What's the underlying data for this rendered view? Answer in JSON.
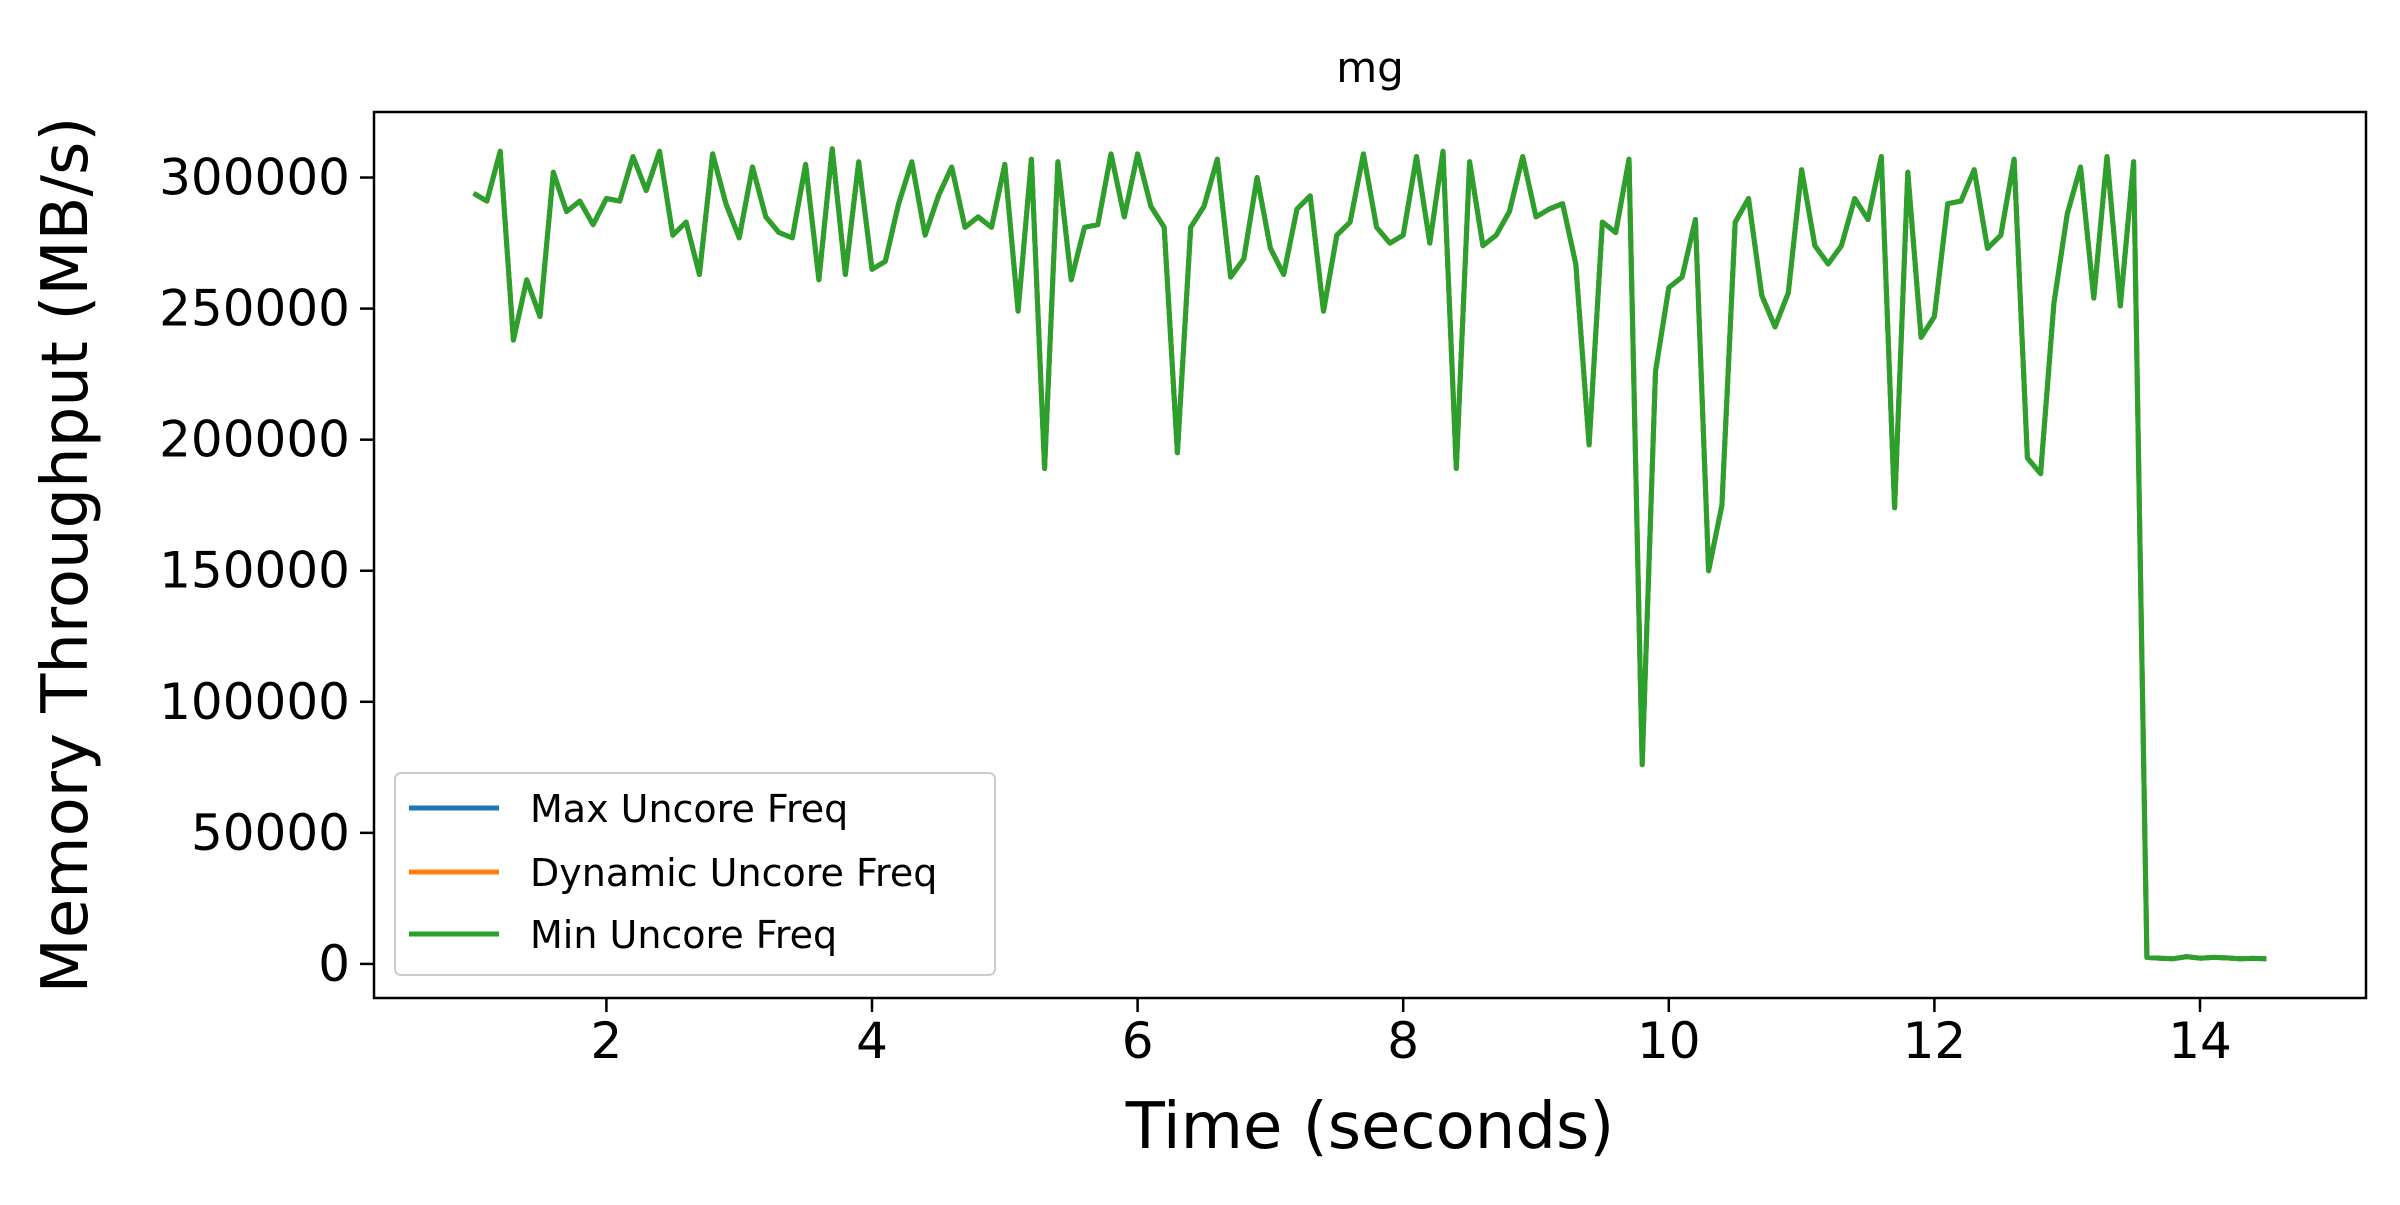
{
  "chart_data": {
    "type": "line",
    "title": "mg",
    "xlabel": "Time (seconds)",
    "ylabel": "Memory Throughput (MB/s)",
    "xlim": [
      0.25,
      15.25
    ],
    "ylim": [
      -13000,
      325000
    ],
    "xticks": [
      2,
      4,
      6,
      8,
      10,
      12,
      14
    ],
    "yticks": [
      0,
      50000,
      100000,
      150000,
      200000,
      250000,
      300000
    ],
    "grid": false,
    "legend_position": "lower-left",
    "x": [
      1.0,
      1.1,
      1.2,
      1.3,
      1.4,
      1.5,
      1.6,
      1.7,
      1.8,
      1.9,
      2.0,
      2.1,
      2.2,
      2.3,
      2.4,
      2.5,
      2.6,
      2.7,
      2.8,
      2.9,
      3.0,
      3.1,
      3.2,
      3.3,
      3.4,
      3.5,
      3.6,
      3.7,
      3.8,
      3.9,
      4.0,
      4.1,
      4.2,
      4.3,
      4.4,
      4.5,
      4.6,
      4.7,
      4.8,
      4.9,
      5.0,
      5.1,
      5.2,
      5.3,
      5.4,
      5.5,
      5.6,
      5.7,
      5.8,
      5.9,
      6.0,
      6.1,
      6.2,
      6.3,
      6.4,
      6.5,
      6.6,
      6.7,
      6.8,
      6.9,
      7.0,
      7.1,
      7.2,
      7.3,
      7.4,
      7.5,
      7.6,
      7.7,
      7.8,
      7.9,
      8.0,
      8.1,
      8.2,
      8.3,
      8.4,
      8.5,
      8.6,
      8.7,
      8.8,
      8.9,
      9.0,
      9.1,
      9.2,
      9.3,
      9.4,
      9.5,
      9.6,
      9.7,
      9.8,
      9.9,
      10.0,
      10.1,
      10.2,
      10.3,
      10.4,
      10.5,
      10.6,
      10.7,
      10.8,
      10.9,
      11.0,
      11.1,
      11.2,
      11.3,
      11.4,
      11.5,
      11.6,
      11.7,
      11.8,
      11.9,
      12.0,
      12.1,
      12.2,
      12.3,
      12.4,
      12.5,
      12.6,
      12.7,
      12.8,
      12.9,
      13.0,
      13.1,
      13.2,
      13.3,
      13.4,
      13.5,
      13.6,
      13.7,
      13.8,
      13.9,
      14.0,
      14.1,
      14.2,
      14.3,
      14.4,
      14.5
    ],
    "series": [
      {
        "name": "Max Uncore Freq",
        "color": "#1f77b4",
        "values": [
          294000,
          291000,
          310000,
          238000,
          261000,
          247000,
          302000,
          287000,
          291000,
          282000,
          292000,
          291000,
          308000,
          295000,
          310000,
          278000,
          283000,
          263000,
          309000,
          290000,
          277000,
          304000,
          285000,
          279000,
          277000,
          305000,
          261000,
          311000,
          263000,
          306000,
          265000,
          268000,
          290000,
          306000,
          278000,
          293000,
          304000,
          281000,
          285000,
          281000,
          305000,
          249000,
          307000,
          189000,
          306000,
          261000,
          281000,
          282000,
          309000,
          285000,
          309000,
          289000,
          281000,
          195000,
          281000,
          289000,
          307000,
          262000,
          269000,
          300000,
          273000,
          263000,
          288000,
          293000,
          249000,
          278000,
          283000,
          309000,
          281000,
          275000,
          278000,
          308000,
          275000,
          310000,
          189000,
          306000,
          274000,
          278000,
          287000,
          308000,
          285000,
          288000,
          290000,
          267000,
          198000,
          283000,
          279000,
          307000,
          76000,
          226000,
          258000,
          262000,
          284000,
          150000,
          175000,
          283000,
          292000,
          255000,
          243000,
          256000,
          303000,
          274000,
          267000,
          274000,
          292000,
          284000,
          308000,
          174000,
          302000,
          239000,
          247000,
          290000,
          291000,
          303000,
          273000,
          278000,
          307000,
          193000,
          187000,
          252000,
          286000,
          304000,
          254000,
          308000,
          251000,
          306000,
          2500,
          2200,
          2000,
          2800,
          2200,
          2500,
          2300,
          2000,
          2100,
          2000
        ]
      },
      {
        "name": "Dynamic Uncore Freq",
        "color": "#ff7f0e",
        "values": [
          294000,
          291000,
          310000,
          238000,
          261000,
          247000,
          302000,
          287000,
          291000,
          282000,
          292000,
          291000,
          308000,
          295000,
          310000,
          278000,
          283000,
          263000,
          309000,
          290000,
          277000,
          304000,
          285000,
          279000,
          277000,
          305000,
          261000,
          311000,
          263000,
          306000,
          265000,
          268000,
          290000,
          306000,
          278000,
          293000,
          304000,
          281000,
          285000,
          281000,
          305000,
          249000,
          307000,
          189000,
          306000,
          261000,
          281000,
          282000,
          309000,
          285000,
          309000,
          289000,
          281000,
          195000,
          281000,
          289000,
          307000,
          262000,
          269000,
          300000,
          273000,
          263000,
          288000,
          293000,
          249000,
          278000,
          283000,
          309000,
          281000,
          275000,
          278000,
          308000,
          275000,
          310000,
          189000,
          306000,
          274000,
          278000,
          287000,
          308000,
          285000,
          288000,
          290000,
          267000,
          198000,
          283000,
          279000,
          307000,
          76000,
          226000,
          258000,
          262000,
          284000,
          150000,
          175000,
          283000,
          292000,
          255000,
          243000,
          256000,
          303000,
          274000,
          267000,
          274000,
          292000,
          284000,
          308000,
          174000,
          302000,
          239000,
          247000,
          290000,
          291000,
          303000,
          273000,
          278000,
          307000,
          193000,
          187000,
          252000,
          286000,
          304000,
          254000,
          308000,
          251000,
          306000,
          2500,
          2200,
          2000,
          2800,
          2200,
          2500,
          2300,
          2000,
          2100,
          2000
        ]
      },
      {
        "name": "Min Uncore Freq",
        "color": "#2ca02c",
        "values": [
          294000,
          291000,
          310000,
          238000,
          261000,
          247000,
          302000,
          287000,
          291000,
          282000,
          292000,
          291000,
          308000,
          295000,
          310000,
          278000,
          283000,
          263000,
          309000,
          290000,
          277000,
          304000,
          285000,
          279000,
          277000,
          305000,
          261000,
          311000,
          263000,
          306000,
          265000,
          268000,
          290000,
          306000,
          278000,
          293000,
          304000,
          281000,
          285000,
          281000,
          305000,
          249000,
          307000,
          189000,
          306000,
          261000,
          281000,
          282000,
          309000,
          285000,
          309000,
          289000,
          281000,
          195000,
          281000,
          289000,
          307000,
          262000,
          269000,
          300000,
          273000,
          263000,
          288000,
          293000,
          249000,
          278000,
          283000,
          309000,
          281000,
          275000,
          278000,
          308000,
          275000,
          310000,
          189000,
          306000,
          274000,
          278000,
          287000,
          308000,
          285000,
          288000,
          290000,
          267000,
          198000,
          283000,
          279000,
          307000,
          76000,
          226000,
          258000,
          262000,
          284000,
          150000,
          175000,
          283000,
          292000,
          255000,
          243000,
          256000,
          303000,
          274000,
          267000,
          274000,
          292000,
          284000,
          308000,
          174000,
          302000,
          239000,
          247000,
          290000,
          291000,
          303000,
          273000,
          278000,
          307000,
          193000,
          187000,
          252000,
          286000,
          304000,
          254000,
          308000,
          251000,
          306000,
          2500,
          2200,
          2000,
          2800,
          2200,
          2500,
          2300,
          2000,
          2100,
          2000
        ]
      }
    ]
  }
}
